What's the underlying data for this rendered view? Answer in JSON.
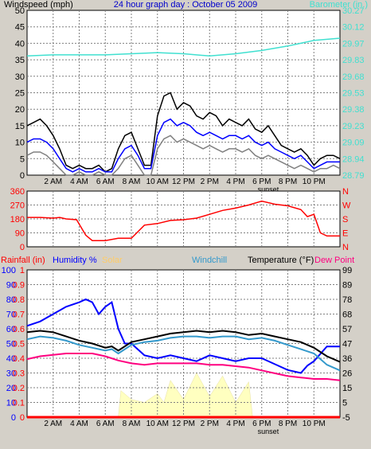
{
  "colors": {
    "background": "#d4d0c8",
    "plot_background": "#ffffff",
    "grid": "#808080",
    "windspeed": "#000000",
    "wind_gust_avg": "#0000ff",
    "wind_low": "#808080",
    "barometer": "#40e0d0",
    "wind_direction": "#ff0000",
    "rainfall": "#ff0000",
    "humidity": "#0000ff",
    "solar": "#ffffc0",
    "windchill": "#3399cc",
    "temperature": "#000000",
    "dew_point": "#ff0080"
  },
  "x_tick_labels": [
    "2 AM",
    "4 AM",
    "6 AM",
    "8 AM",
    "10 AM",
    "12 PM",
    "2 PM",
    "4 PM",
    "6 PM",
    "8 PM",
    "10 PM"
  ],
  "sunset_label": "sunset",
  "chart_data": [
    {
      "type": "line",
      "title": "24 hour graph day : October 05 2009",
      "ylabel_left": "Windspeed (mph)",
      "ylabel_right": "Barometer (in.)",
      "x": "hours 0-24",
      "ylim": [
        0,
        50
      ],
      "y_ticks_left": [
        "0",
        "5",
        "10",
        "15",
        "20",
        "25",
        "30",
        "35",
        "40",
        "45",
        "50"
      ],
      "y2lim": [
        28.79,
        30.27
      ],
      "y_ticks_right": [
        "28.79",
        "28.94",
        "29.09",
        "29.23",
        "29.38",
        "29.53",
        "29.68",
        "29.83",
        "29.97",
        "30.12",
        "30.27"
      ],
      "series": [
        {
          "name": "Windspeed (mph)",
          "color": "#000000",
          "x": [
            0,
            0.5,
            1,
            1.5,
            2,
            2.5,
            3,
            3.5,
            4,
            4.5,
            5,
            5.5,
            6,
            6.5,
            7,
            7.5,
            8,
            8.5,
            9,
            9.5,
            10,
            10.5,
            11,
            11.5,
            12,
            12.5,
            13,
            13.5,
            14,
            14.5,
            15,
            15.5,
            16,
            16.5,
            17,
            17.5,
            18,
            18.5,
            19,
            19.5,
            20,
            20.5,
            21,
            21.5,
            22,
            22.5,
            23,
            23.5,
            24
          ],
          "values": [
            15,
            16,
            17,
            15,
            12,
            8,
            3,
            2,
            3,
            2,
            2,
            3,
            1,
            2,
            8,
            12,
            13,
            8,
            3,
            3,
            18,
            24,
            25,
            20,
            22,
            21,
            18,
            17,
            19,
            18,
            15,
            17,
            16,
            15,
            17,
            14,
            13,
            15,
            12,
            9,
            8,
            7,
            8,
            6,
            3,
            5,
            6,
            6,
            5
          ]
        },
        {
          "name": "Average wind",
          "color": "#0000ff",
          "x": [
            0,
            0.5,
            1,
            1.5,
            2,
            2.5,
            3,
            3.5,
            4,
            4.5,
            5,
            5.5,
            6,
            6.5,
            7,
            7.5,
            8,
            8.5,
            9,
            9.5,
            10,
            10.5,
            11,
            11.5,
            12,
            12.5,
            13,
            13.5,
            14,
            14.5,
            15,
            15.5,
            16,
            16.5,
            17,
            17.5,
            18,
            18.5,
            19,
            19.5,
            20,
            20.5,
            21,
            21.5,
            22,
            22.5,
            23,
            23.5,
            24
          ],
          "values": [
            10,
            11,
            11,
            10,
            8,
            5,
            2,
            1,
            2,
            1,
            1,
            2,
            1,
            1,
            5,
            8,
            9,
            6,
            2,
            2,
            12,
            16,
            17,
            15,
            16,
            15,
            13,
            12,
            13,
            12,
            11,
            12,
            12,
            11,
            12,
            10,
            9,
            10,
            8,
            7,
            6,
            5,
            6,
            4,
            2,
            3,
            4,
            4,
            4
          ]
        },
        {
          "name": "Low wind",
          "color": "#808080",
          "x": [
            0,
            0.5,
            1,
            1.5,
            2,
            2.5,
            3,
            3.5,
            4,
            4.5,
            5,
            5.5,
            6,
            6.5,
            7,
            7.5,
            8,
            8.5,
            9,
            9.5,
            10,
            10.5,
            11,
            11.5,
            12,
            12.5,
            13,
            13.5,
            14,
            14.5,
            15,
            15.5,
            16,
            16.5,
            17,
            17.5,
            18,
            18.5,
            19,
            19.5,
            20,
            20.5,
            21,
            21.5,
            22,
            22.5,
            23,
            23.5,
            24
          ],
          "values": [
            6,
            7,
            7,
            6,
            4,
            2,
            0,
            0,
            1,
            0,
            0,
            1,
            0,
            0,
            2,
            5,
            6,
            3,
            0,
            0,
            8,
            11,
            12,
            10,
            11,
            10,
            9,
            8,
            9,
            8,
            7,
            8,
            8,
            7,
            8,
            6,
            5,
            6,
            5,
            4,
            3,
            2,
            3,
            2,
            1,
            2,
            2,
            3,
            2
          ]
        },
        {
          "name": "Barometer (in.)",
          "color": "#40e0d0",
          "axis": "right",
          "x": [
            0,
            2,
            4,
            6,
            8,
            10,
            12,
            14,
            16,
            18,
            20,
            22,
            24
          ],
          "values": [
            29.86,
            29.87,
            29.87,
            29.87,
            29.88,
            29.89,
            29.88,
            29.86,
            29.88,
            29.91,
            29.95,
            30.0,
            30.02
          ]
        }
      ]
    },
    {
      "type": "line",
      "ylabel_left": "",
      "ylim": [
        0,
        360
      ],
      "y_ticks_left": [
        "0",
        "90",
        "180",
        "270",
        "360"
      ],
      "y_ticks_right": [
        "N",
        "E",
        "S",
        "W",
        "N"
      ],
      "series": [
        {
          "name": "Wind direction",
          "color": "#ff0000",
          "x": [
            0,
            1,
            2,
            2.5,
            3,
            3.8,
            4.5,
            5,
            6,
            7,
            8,
            9,
            10,
            11,
            12,
            13,
            14,
            15,
            16,
            17,
            18,
            19,
            20,
            21,
            21.5,
            22,
            22.5,
            23,
            24
          ],
          "values": [
            190,
            190,
            185,
            190,
            180,
            175,
            75,
            40,
            40,
            55,
            55,
            140,
            150,
            170,
            175,
            185,
            210,
            235,
            250,
            270,
            295,
            275,
            265,
            240,
            195,
            210,
            90,
            70,
            70
          ]
        }
      ]
    },
    {
      "type": "line",
      "ylabel_rain": "Rainfall (in)",
      "ylabel_humidity": "Humidity %",
      "ylabel_solar": "Solar",
      "ylabel_windchill": "Windchill",
      "ylabel_temperature": "Temperature (°F)",
      "ylabel_dewpoint": "Dew Point",
      "ylim": [
        0,
        100
      ],
      "y_ticks_humidity": [
        "0",
        "10",
        "20",
        "30",
        "40",
        "50",
        "60",
        "70",
        "80",
        "90",
        "100"
      ],
      "y_ticks_rain": [
        "0",
        "0.1",
        "0.2",
        "0.3",
        "0.4",
        "0.5",
        "0.6",
        "0.7",
        "0.8",
        "0.9",
        "1"
      ],
      "y_ticks_temperature": [
        "-5",
        "5",
        "15",
        "26",
        "36",
        "47",
        "57",
        "68",
        "78",
        "89",
        "99"
      ],
      "y2lim": [
        -5,
        99
      ],
      "series": [
        {
          "name": "Humidity %",
          "color": "#0000ff",
          "x": [
            0,
            1,
            2,
            3,
            4,
            4.5,
            5,
            5.5,
            6,
            6.5,
            7,
            7.5,
            8,
            9,
            10,
            11,
            12,
            13,
            14,
            15,
            16,
            17,
            18,
            19,
            20,
            21,
            21.5,
            22,
            23,
            24
          ],
          "values": [
            62,
            65,
            70,
            75,
            78,
            80,
            78,
            70,
            75,
            78,
            60,
            50,
            50,
            42,
            40,
            42,
            40,
            38,
            42,
            40,
            38,
            40,
            40,
            36,
            32,
            30,
            35,
            38,
            48,
            48
          ]
        },
        {
          "name": "Temperature (°F)",
          "color": "#000000",
          "axis": "right",
          "x": [
            0,
            1,
            2,
            3,
            4,
            5,
            6,
            6.5,
            7,
            8,
            9,
            10,
            11,
            12,
            13,
            14,
            15,
            16,
            17,
            18,
            19,
            20,
            21,
            22,
            23,
            24
          ],
          "values": [
            55,
            56,
            55,
            52,
            49,
            47,
            44,
            45,
            42,
            48,
            50,
            52,
            54,
            55,
            56,
            55,
            56,
            55,
            53,
            54,
            52,
            50,
            48,
            44,
            38,
            34
          ]
        },
        {
          "name": "Windchill",
          "color": "#3399cc",
          "axis": "right",
          "x": [
            0,
            1,
            2,
            3,
            4,
            5,
            6,
            6.5,
            7,
            8,
            9,
            10,
            11,
            12,
            13,
            14,
            15,
            16,
            17,
            18,
            19,
            20,
            21,
            22,
            23,
            24
          ],
          "values": [
            50,
            52,
            51,
            49,
            46,
            44,
            42,
            43,
            40,
            46,
            48,
            49,
            51,
            52,
            52,
            51,
            52,
            52,
            50,
            51,
            49,
            46,
            43,
            40,
            32,
            28
          ]
        },
        {
          "name": "Dew Point",
          "color": "#ff0080",
          "axis": "right",
          "x": [
            0,
            1,
            2,
            3,
            4,
            5,
            6,
            7,
            8,
            9,
            10,
            11,
            12,
            13,
            14,
            15,
            16,
            17,
            18,
            19,
            20,
            21,
            22,
            23,
            24
          ],
          "values": [
            36,
            38,
            39,
            40,
            40,
            40,
            38,
            35,
            33,
            32,
            33,
            33,
            33,
            33,
            32,
            32,
            31,
            30,
            28,
            26,
            24,
            23,
            22,
            22,
            21
          ]
        },
        {
          "name": "Solar",
          "color": "#ffffc0",
          "x": [
            0,
            7,
            7.2,
            8,
            9,
            10,
            10.5,
            11,
            12,
            13,
            14,
            15,
            16,
            17,
            17.3,
            18,
            24
          ],
          "values": [
            0,
            0,
            18,
            12,
            10,
            16,
            10,
            25,
            12,
            30,
            14,
            28,
            10,
            24,
            0,
            0,
            0
          ]
        },
        {
          "name": "Rainfall (in)",
          "color": "#ff0000",
          "x": [
            0,
            24
          ],
          "values": [
            0,
            0
          ]
        }
      ]
    }
  ]
}
